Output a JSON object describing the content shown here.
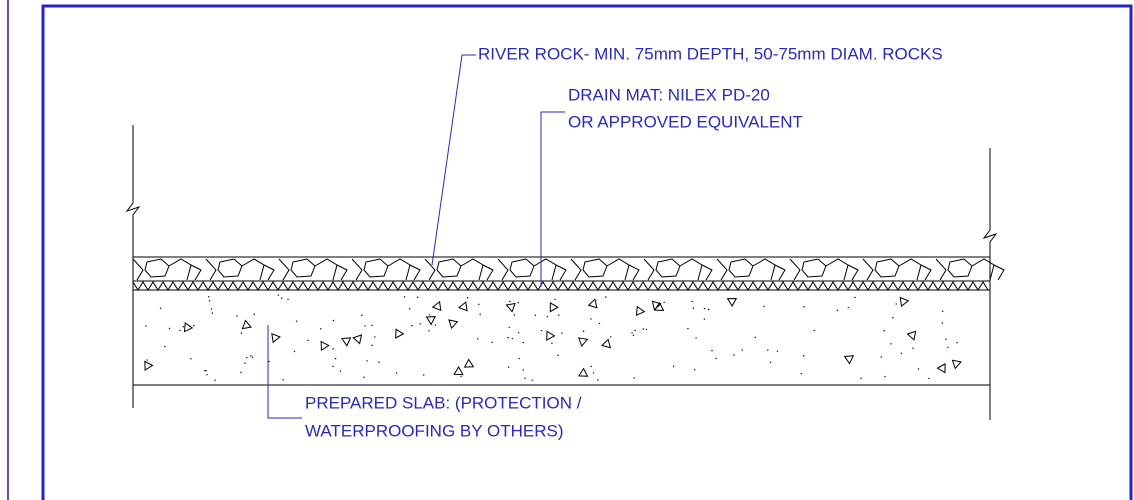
{
  "annotations": [
    {
      "lines": [
        "RIVER ROCK- MIN. 75mm DEPTH, 50-75mm DIAM. ROCKS"
      ]
    },
    {
      "lines": [
        "DRAIN MAT: NILEX PD-20",
        "OR APPROVED EQUIVALENT"
      ]
    },
    {
      "lines": [
        "PREPARED SLAB: (PROTECTION /",
        "WATERPROOFING BY OTHERS)"
      ]
    }
  ]
}
